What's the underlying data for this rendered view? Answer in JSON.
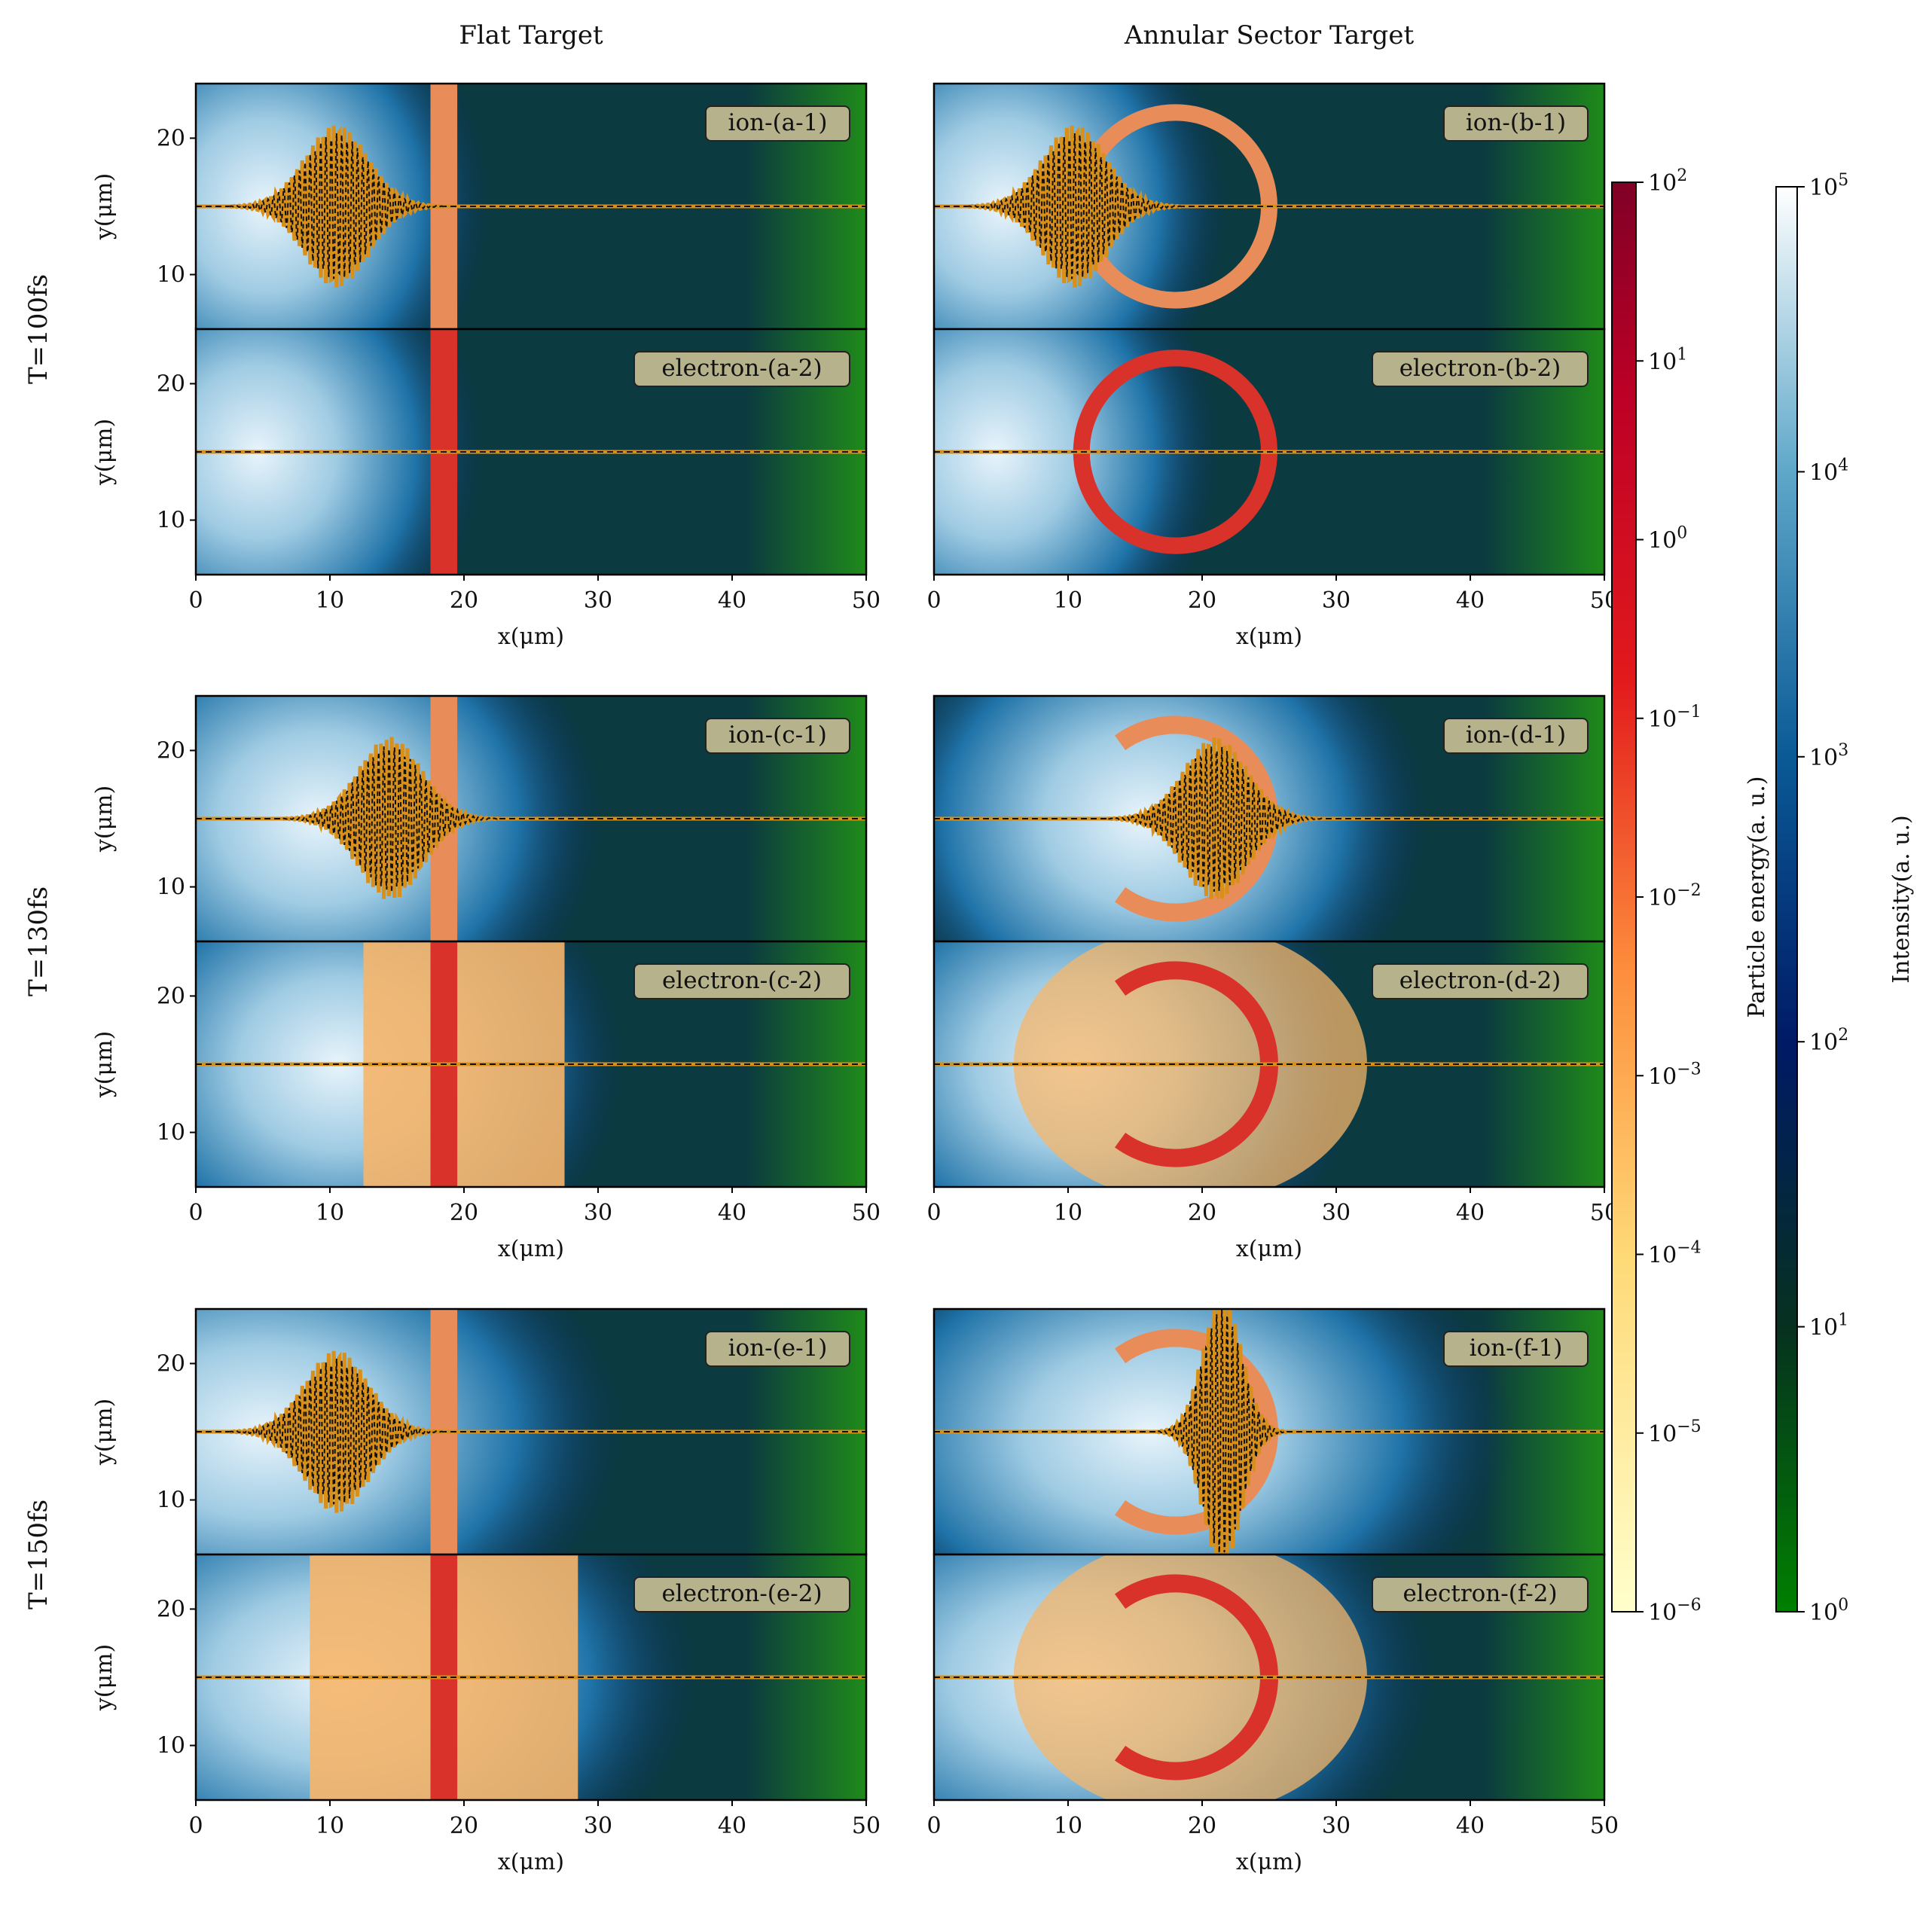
{
  "columns": {
    "flat": "Flat Target",
    "annular": "Annular Sector Target"
  },
  "rows": [
    {
      "time_label": "T=100fs",
      "time_fs": 100
    },
    {
      "time_label": "T=130fs",
      "time_fs": 130
    },
    {
      "time_label": "T=150fs",
      "time_fs": 150
    }
  ],
  "axis": {
    "xlabel": "x(μm)",
    "ylabel": "y(μm)"
  },
  "colorbars": {
    "energy": {
      "label": "Particle energy(a. u.)",
      "ticks": [
        "10^2",
        "10^1",
        "10^0",
        "10^-1",
        "10^-2",
        "10^-3",
        "10^-4",
        "10^-5",
        "10^-6"
      ]
    },
    "intensity": {
      "label": "Intensity(a. u.)",
      "ticks": [
        "10^5",
        "10^4",
        "10^3",
        "10^2",
        "10^1",
        "10^0"
      ]
    }
  },
  "chart_data": {
    "type": "heatmap",
    "title_columns": [
      "Flat Target",
      "Annular Sector Target"
    ],
    "row_labels": [
      "T=100fs",
      "T=130fs",
      "T=150fs"
    ],
    "xlabel": "x(μm)",
    "ylabel": "y(μm)",
    "xlim": [
      0,
      50
    ],
    "ylim": [
      6,
      24
    ],
    "xticks": [
      0,
      10,
      20,
      30,
      40,
      50
    ],
    "yticks": [
      10,
      20
    ],
    "laser_axis_y": 15,
    "panels": [
      {
        "id": "a-1",
        "label": "ion-(a-1)",
        "species": "ion",
        "target": "flat",
        "time_fs": 100,
        "pulse_center_x": 10.5,
        "target_x": [
          17.5,
          19.5
        ]
      },
      {
        "id": "a-2",
        "label": "electron-(a-2)",
        "species": "electron",
        "target": "flat",
        "time_fs": 100,
        "target_x": [
          17.5,
          19.5
        ]
      },
      {
        "id": "b-1",
        "label": "ion-(b-1)",
        "species": "ion",
        "target": "annular",
        "time_fs": 100,
        "pulse_center_x": 10.5,
        "ring_center": [
          18,
          15
        ]
      },
      {
        "id": "b-2",
        "label": "electron-(b-2)",
        "species": "electron",
        "target": "annular",
        "time_fs": 100,
        "ring_center": [
          18,
          15
        ]
      },
      {
        "id": "c-1",
        "label": "ion-(c-1)",
        "species": "ion",
        "target": "flat",
        "time_fs": 130,
        "pulse_center_x": 14.5,
        "target_x": [
          17.5,
          19.5
        ]
      },
      {
        "id": "c-2",
        "label": "electron-(c-2)",
        "species": "electron",
        "target": "flat",
        "time_fs": 130,
        "target_x": [
          17.5,
          19.5
        ]
      },
      {
        "id": "d-1",
        "label": "ion-(d-1)",
        "species": "ion",
        "target": "annular",
        "time_fs": 130,
        "pulse_center_x": 21,
        "ring_center": [
          18,
          15
        ]
      },
      {
        "id": "d-2",
        "label": "electron-(d-2)",
        "species": "electron",
        "target": "annular",
        "time_fs": 130,
        "ring_center": [
          18,
          15
        ]
      },
      {
        "id": "e-1",
        "label": "ion-(e-1)",
        "species": "ion",
        "target": "flat",
        "time_fs": 150,
        "pulse_center_x": 10.5,
        "target_x": [
          17.5,
          19.5
        ]
      },
      {
        "id": "e-2",
        "label": "electron-(e-2)",
        "species": "electron",
        "target": "flat",
        "time_fs": 150,
        "target_x": [
          17.5,
          19.5
        ]
      },
      {
        "id": "f-1",
        "label": "ion-(f-1)",
        "species": "ion",
        "target": "annular",
        "time_fs": 150,
        "pulse_center_x": 21.5,
        "ring_center": [
          18,
          15
        ]
      },
      {
        "id": "f-2",
        "label": "electron-(f-2)",
        "species": "electron",
        "target": "annular",
        "time_fs": 150,
        "ring_center": [
          18,
          15
        ]
      }
    ],
    "colorbar_energy": {
      "label": "Particle energy(a. u.)",
      "scale": "log",
      "range": [
        1e-06,
        100.0
      ]
    },
    "colorbar_intensity": {
      "label": "Intensity(a. u.)",
      "scale": "log",
      "range": [
        1.0,
        100000.0
      ]
    }
  }
}
